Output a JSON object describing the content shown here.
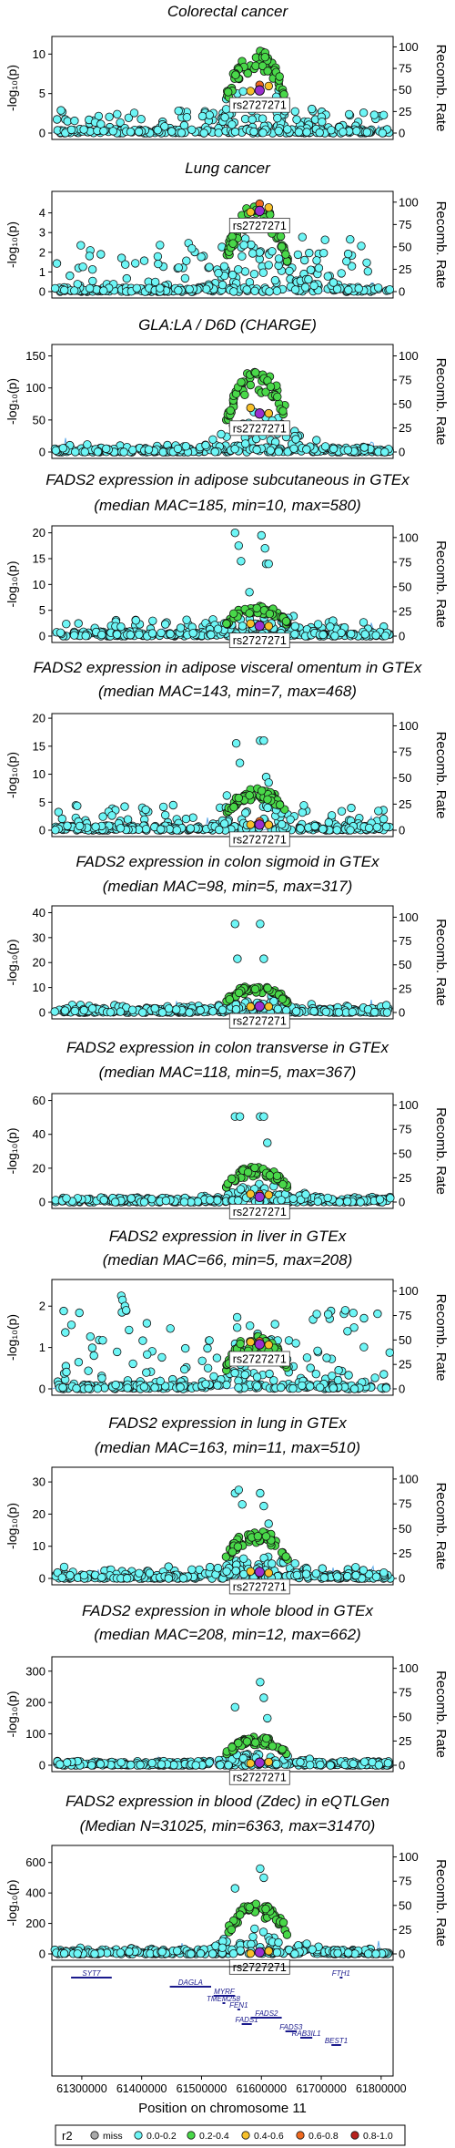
{
  "chart_data": [
    {
      "type": "scatter",
      "title_lines": [
        "Colorectal cancer"
      ],
      "ytick_labels": [
        "0",
        "5",
        "10"
      ],
      "yticks": [
        0,
        5,
        10
      ],
      "ylim": [
        0,
        12
      ],
      "rtick_labels": [
        "0",
        "25",
        "50",
        "75",
        "100"
      ],
      "ylabel": "-log₁₀(p)",
      "ylabel_right": "Recomb. Rate",
      "lead_snp": "rs2727271",
      "lead_y": 5.4,
      "peak_y": 10.6,
      "bg_max": 3.0,
      "hits": []
    },
    {
      "type": "scatter",
      "title_lines": [
        "Lung cancer"
      ],
      "ytick_labels": [
        "0",
        "1",
        "2",
        "3",
        "4"
      ],
      "yticks": [
        0,
        1,
        2,
        3,
        4
      ],
      "ylim": [
        0,
        5
      ],
      "rtick_labels": [
        "0",
        "25",
        "50",
        "75",
        "100"
      ],
      "ylabel": "-log₁₀(p)",
      "ylabel_right": "Recomb. Rate",
      "lead_snp": "rs2727271",
      "lead_y": 4.1,
      "peak_y": 4.4,
      "bg_max": 2.7,
      "hits": []
    },
    {
      "type": "scatter",
      "title_lines": [
        "GLA:LA / D6D (CHARGE)"
      ],
      "ytick_labels": [
        "0",
        "50",
        "100",
        "150"
      ],
      "yticks": [
        0,
        50,
        100,
        150
      ],
      "ylim": [
        0,
        165
      ],
      "rtick_labels": [
        "0",
        "25",
        "50",
        "75",
        "100"
      ],
      "ylabel": "-log₁₀(p)",
      "ylabel_right": "Recomb. Rate",
      "lead_snp": "rs2727271",
      "lead_y": 60,
      "peak_y": 128,
      "bg_max": 12,
      "hits": []
    },
    {
      "type": "scatter",
      "title_lines": [
        "FADS2 expression in adipose subcutaneous in GTEx",
        "(median MAC=185, min=10, max=580)"
      ],
      "ytick_labels": [
        "0",
        "5",
        "10",
        "15",
        "20"
      ],
      "yticks": [
        0,
        5,
        10,
        15,
        20
      ],
      "ylim": [
        0,
        21
      ],
      "rtick_labels": [
        "0",
        "25",
        "50",
        "75",
        "100"
      ],
      "ylabel": "-log₁₀(p)",
      "ylabel_right": "Recomb. Rate",
      "lead_snp": "rs2727271",
      "lead_y": 2.0,
      "peak_y": 6.0,
      "bg_max": 3.2,
      "hits": [
        [
          61556000,
          20.0
        ],
        [
          61562000,
          17.5
        ],
        [
          61566000,
          14.5
        ],
        [
          61580000,
          8.5
        ],
        [
          61600000,
          19.5
        ],
        [
          61606000,
          17.0
        ],
        [
          61608000,
          14.0
        ],
        [
          61612000,
          14.0
        ]
      ]
    },
    {
      "type": "scatter",
      "title_lines": [
        "FADS2 expression in adipose visceral omentum in GTEx",
        "(median MAC=143, min=7, max=468)"
      ],
      "ytick_labels": [
        "0",
        "5",
        "10",
        "15",
        "20"
      ],
      "yticks": [
        0,
        5,
        10,
        15,
        20
      ],
      "ylim": [
        0,
        20.5
      ],
      "rtick_labels": [
        "0",
        "25",
        "50",
        "75",
        "100"
      ],
      "ylabel": "-log₁₀(p)",
      "ylabel_right": "Recomb. Rate",
      "lead_snp": "rs2727271",
      "lead_y": 1.0,
      "peak_y": 7.5,
      "bg_max": 4.5,
      "hits": [
        [
          61558000,
          15.5
        ],
        [
          61564000,
          12.0
        ],
        [
          61598000,
          16.0
        ],
        [
          61604000,
          16.0
        ],
        [
          61608000,
          9.5
        ],
        [
          61612000,
          8.5
        ]
      ]
    },
    {
      "type": "scatter",
      "title_lines": [
        "FADS2 expression in colon sigmoid in GTEx",
        "(median MAC=98, min=5, max=317)"
      ],
      "ytick_labels": [
        "0",
        "10",
        "20",
        "30",
        "40"
      ],
      "yticks": [
        0,
        10,
        20,
        30,
        40
      ],
      "ylim": [
        0,
        42
      ],
      "rtick_labels": [
        "0",
        "25",
        "50",
        "75",
        "100"
      ],
      "ylabel": "-log₁₀(p)",
      "ylabel_right": "Recomb. Rate",
      "lead_snp": "rs2727271",
      "lead_y": 2.5,
      "peak_y": 11.0,
      "bg_max": 3.0,
      "hits": [
        [
          61556000,
          35.5
        ],
        [
          61560000,
          21.5
        ],
        [
          61598000,
          35.5
        ],
        [
          61604000,
          21.5
        ]
      ]
    },
    {
      "type": "scatter",
      "title_lines": [
        "FADS2 expression in colon transverse in GTEx",
        "(median MAC=118, min=5, max=367)"
      ],
      "ytick_labels": [
        "0",
        "20",
        "40",
        "60"
      ],
      "yticks": [
        0,
        20,
        40,
        60
      ],
      "ylim": [
        0,
        63
      ],
      "rtick_labels": [
        "0",
        "25",
        "50",
        "75",
        "100"
      ],
      "ylabel": "-log₁₀(p)",
      "ylabel_right": "Recomb. Rate",
      "lead_snp": "rs2727271",
      "lead_y": 3.0,
      "peak_y": 21.0,
      "bg_max": 3.0,
      "hits": [
        [
          61556000,
          50.5
        ],
        [
          61564000,
          50.5
        ],
        [
          61598000,
          50.5
        ],
        [
          61604000,
          50.5
        ],
        [
          61610000,
          35.0
        ]
      ]
    },
    {
      "type": "scatter",
      "title_lines": [
        "FADS2 expression in liver in GTEx",
        "(median MAC=66, min=5, max=208)"
      ],
      "ytick_labels": [
        "0",
        "1",
        "2"
      ],
      "yticks": [
        0,
        1,
        2
      ],
      "ylim": [
        0,
        2.6
      ],
      "rtick_labels": [
        "0",
        "25",
        "50",
        "75",
        "100"
      ],
      "ylabel": "-log₁₀(p)",
      "ylabel_right": "Recomb. Rate",
      "lead_snp": "rs2727271",
      "lead_y": 1.08,
      "peak_y": 1.3,
      "bg_max": 1.9,
      "hits": [
        [
          61366000,
          2.25
        ],
        [
          61368000,
          2.15
        ],
        [
          61372000,
          2.0
        ],
        [
          61374000,
          1.9
        ],
        [
          61740000,
          1.9
        ]
      ]
    },
    {
      "type": "scatter",
      "title_lines": [
        "FADS2 expression in lung in GTEx",
        "(median MAC=163, min=11, max=510)"
      ],
      "ytick_labels": [
        "0",
        "10",
        "20",
        "30"
      ],
      "yticks": [
        0,
        10,
        20,
        30
      ],
      "ylim": [
        0,
        34
      ],
      "rtick_labels": [
        "0",
        "25",
        "50",
        "75",
        "100"
      ],
      "ylabel": "-log₁₀(p)",
      "ylabel_right": "Recomb. Rate",
      "lead_snp": "rs2727271",
      "lead_y": 2.0,
      "peak_y": 15.0,
      "bg_max": 4.0,
      "hits": [
        [
          61556000,
          26.5
        ],
        [
          61562000,
          27.5
        ],
        [
          61568000,
          23.0
        ],
        [
          61598000,
          26.5
        ],
        [
          61604000,
          22.5
        ],
        [
          61612000,
          17.0
        ]
      ]
    },
    {
      "type": "scatter",
      "title_lines": [
        "FADS2 expression in whole blood in GTEx",
        "(median MAC=208, min=12, max=662)"
      ],
      "ytick_labels": [
        "0",
        "100",
        "200",
        "300"
      ],
      "yticks": [
        0,
        100,
        200,
        300
      ],
      "ylim": [
        0,
        340
      ],
      "rtick_labels": [
        "0",
        "25",
        "50",
        "75",
        "100"
      ],
      "ylabel": "-log₁₀(p)",
      "ylabel_right": "Recomb. Rate",
      "lead_snp": "rs2727271",
      "lead_y": 8,
      "peak_y": 90,
      "bg_max": 12,
      "hits": [
        [
          61598000,
          265
        ],
        [
          61604000,
          215
        ],
        [
          61556000,
          185
        ],
        [
          61610000,
          150
        ]
      ]
    },
    {
      "type": "scatter",
      "title_lines": [
        "FADS2 expression in blood (Zdec) in eQTLGen",
        "(Median N=31025, min=6363, max=31470)"
      ],
      "ytick_labels": [
        "0",
        "200",
        "400",
        "600"
      ],
      "yticks": [
        0,
        200,
        400,
        600
      ],
      "ylim": [
        0,
        700
      ],
      "rtick_labels": [
        "0",
        "25",
        "50",
        "75",
        "100"
      ],
      "ylabel": "-log₁₀(p)",
      "ylabel_right": "Recomb. Rate",
      "lead_snp": "rs2727271",
      "lead_y": 10,
      "peak_y": 330,
      "bg_max": 40,
      "hits": [
        [
          61598000,
          560
        ],
        [
          61604000,
          500
        ],
        [
          61556000,
          430
        ]
      ]
    }
  ],
  "x_axis": {
    "label": "Position on chromosome 11",
    "xlim": [
      61250000,
      61820000
    ],
    "tick_values": [
      61300000,
      61400000,
      61500000,
      61600000,
      61700000,
      61800000
    ],
    "tick_labels": [
      "61300000",
      "61400000",
      "61500000",
      "61600000",
      "61700000",
      "61800000"
    ]
  },
  "lead_position": 61597000,
  "genes": [
    {
      "name": "SYT7",
      "start": 61282000,
      "end": 61350000,
      "row": 0
    },
    {
      "name": "DAGLA",
      "start": 61447000,
      "end": 61516000,
      "row": 1
    },
    {
      "name": "FTH1",
      "start": 61731000,
      "end": 61735000,
      "row": 0
    },
    {
      "name": "MYRF",
      "start": 61520000,
      "end": 61556000,
      "row": 2
    },
    {
      "name": "TMEM258",
      "start": 61535000,
      "end": 61538000,
      "row": 3
    },
    {
      "name": "FEN1",
      "start": 61560000,
      "end": 61564000,
      "row": 4
    },
    {
      "name": "FADS2",
      "start": 61583000,
      "end": 61634000,
      "row": 5
    },
    {
      "name": "FADS1",
      "start": 61567000,
      "end": 61584000,
      "row": 6
    },
    {
      "name": "FADS3",
      "start": 61640000,
      "end": 61659000,
      "row": 7
    },
    {
      "name": "RAB3IL1",
      "start": 61665000,
      "end": 61685000,
      "row": 8
    },
    {
      "name": "BEST1",
      "start": 61717000,
      "end": 61733000,
      "row": 9
    }
  ],
  "legend": {
    "title": "r2",
    "items": [
      {
        "label": "miss",
        "color": "#aaaaaa"
      },
      {
        "label": "0.0-0.2",
        "color": "#6df6f6"
      },
      {
        "label": "0.2-0.4",
        "color": "#49d849"
      },
      {
        "label": "0.4-0.6",
        "color": "#f7c02a"
      },
      {
        "label": "0.6-0.8",
        "color": "#f06a20"
      },
      {
        "label": "0.8-1.0",
        "color": "#b8221d"
      }
    ]
  },
  "colors": {
    "r2_0": "#6df6f6",
    "r2_1": "#49d849",
    "r2_2": "#f7c02a",
    "r2_3": "#f06a20",
    "r2_4": "#b8221d",
    "lead": "#9a2ed0",
    "recomb_line": "#5aa8e8",
    "gene": "#1a1a8c"
  }
}
